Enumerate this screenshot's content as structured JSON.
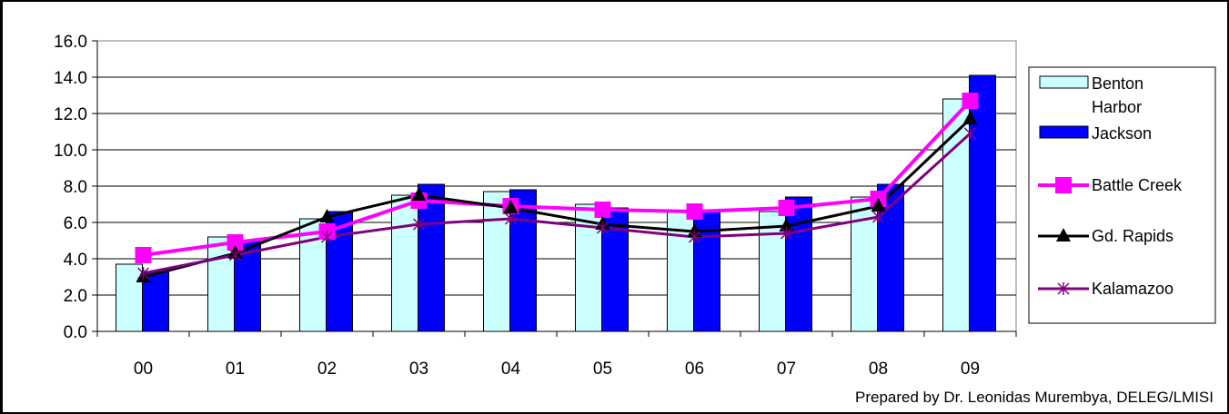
{
  "chart_data": {
    "type": "bar",
    "categories": [
      "00",
      "01",
      "02",
      "03",
      "04",
      "05",
      "06",
      "07",
      "08",
      "09"
    ],
    "ylim": [
      0,
      16
    ],
    "yticks": [
      "0.0",
      "2.0",
      "4.0",
      "6.0",
      "8.0",
      "10.0",
      "12.0",
      "14.0",
      "16.0"
    ],
    "grid": "horizontal",
    "legend": "right",
    "bar_series": [
      {
        "name": "Benton Harbor",
        "color": "#ccffff",
        "values": [
          3.7,
          5.2,
          6.2,
          7.5,
          7.7,
          7.0,
          6.6,
          6.6,
          7.4,
          12.8
        ]
      },
      {
        "name": "Jackson",
        "color": "#0000ff",
        "values": [
          3.3,
          5.0,
          6.6,
          8.1,
          7.8,
          6.8,
          6.7,
          7.4,
          8.1,
          14.1
        ]
      }
    ],
    "line_series": [
      {
        "name": "Battle Creek",
        "color": "#ff00ff",
        "marker": "square",
        "values": [
          4.2,
          4.9,
          5.5,
          7.2,
          6.9,
          6.7,
          6.6,
          6.8,
          7.3,
          12.7
        ]
      },
      {
        "name": "Gd. Rapids",
        "color": "#000000",
        "marker": "triangle",
        "values": [
          3.0,
          4.3,
          6.3,
          7.5,
          6.8,
          5.9,
          5.5,
          5.8,
          6.9,
          11.7
        ]
      },
      {
        "name": "Kalamazoo",
        "color": "#800080",
        "marker": "star",
        "values": [
          3.2,
          4.2,
          5.2,
          5.9,
          6.2,
          5.7,
          5.2,
          5.4,
          6.3,
          10.9
        ]
      }
    ],
    "legend_labels": {
      "benton_line1": "Benton",
      "benton_line2": "Harbor",
      "jackson": "Jackson",
      "battle_creek": "Battle Creek",
      "gd_rapids": "Gd. Rapids",
      "kalamazoo": "Kalamazoo"
    },
    "credit": "Prepared by Dr. Leonidas Murembya, DELEG/LMISI"
  }
}
